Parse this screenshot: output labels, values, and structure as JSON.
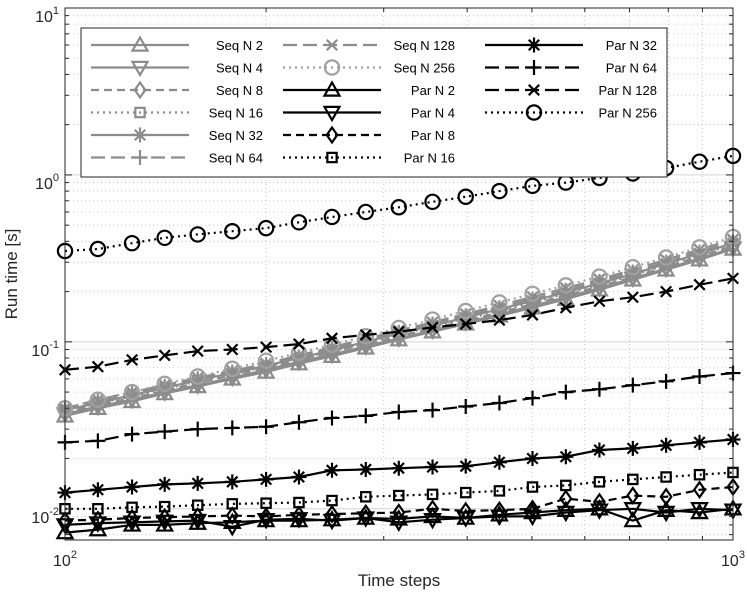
{
  "chart_data": {
    "type": "line",
    "scale": "log-log",
    "title": "",
    "xlabel": "Time steps",
    "ylabel": "Run time [s]",
    "xlim": [
      100,
      1000
    ],
    "ylim": [
      0.0065,
      10
    ],
    "grid": true,
    "legend_position": "top-left",
    "x_ticks": [
      {
        "base": "10",
        "exp": "2",
        "value": 100
      },
      {
        "base": "10",
        "exp": "3",
        "value": 1000
      }
    ],
    "y_ticks": [
      {
        "base": "10",
        "exp": "-2",
        "value": 0.01
      },
      {
        "base": "10",
        "exp": "-1",
        "value": 0.1
      },
      {
        "base": "10",
        "exp": "0",
        "value": 1
      },
      {
        "base": "10",
        "exp": "1",
        "value": 10
      }
    ],
    "x": [
      100,
      112,
      126,
      141,
      158,
      178,
      200,
      224,
      251,
      282,
      316,
      355,
      398,
      447,
      501,
      562,
      631,
      708,
      794,
      891,
      1000
    ],
    "series": [
      {
        "name": "Seq N 2",
        "color": "#8c8c8c",
        "dash": "",
        "marker": "triangle-up",
        "values": [
          0.036,
          0.04,
          0.044,
          0.049,
          0.054,
          0.06,
          0.066,
          0.074,
          0.082,
          0.092,
          0.103,
          0.115,
          0.128,
          0.143,
          0.16,
          0.18,
          0.205,
          0.235,
          0.27,
          0.31,
          0.36
        ]
      },
      {
        "name": "Seq N 4",
        "color": "#8c8c8c",
        "dash": "",
        "marker": "triangle-down",
        "values": [
          0.037,
          0.041,
          0.045,
          0.05,
          0.055,
          0.061,
          0.068,
          0.076,
          0.084,
          0.094,
          0.105,
          0.117,
          0.131,
          0.146,
          0.164,
          0.185,
          0.21,
          0.24,
          0.275,
          0.315,
          0.365
        ]
      },
      {
        "name": "Seq N 8",
        "color": "#8c8c8c",
        "dash": "8,5",
        "marker": "diamond",
        "values": [
          0.038,
          0.042,
          0.046,
          0.051,
          0.057,
          0.063,
          0.07,
          0.078,
          0.087,
          0.097,
          0.108,
          0.12,
          0.134,
          0.15,
          0.168,
          0.19,
          0.215,
          0.245,
          0.282,
          0.325,
          0.375
        ]
      },
      {
        "name": "Seq N 16",
        "color": "#8c8c8c",
        "dash": "2,4",
        "marker": "square",
        "values": [
          0.038,
          0.043,
          0.047,
          0.052,
          0.058,
          0.064,
          0.071,
          0.079,
          0.088,
          0.098,
          0.11,
          0.123,
          0.137,
          0.153,
          0.172,
          0.194,
          0.22,
          0.25,
          0.288,
          0.332,
          0.382
        ]
      },
      {
        "name": "Seq N 32",
        "color": "#8c8c8c",
        "dash": "",
        "marker": "asterisk",
        "values": [
          0.039,
          0.043,
          0.048,
          0.053,
          0.059,
          0.065,
          0.072,
          0.08,
          0.089,
          0.1,
          0.112,
          0.125,
          0.14,
          0.157,
          0.176,
          0.198,
          0.224,
          0.255,
          0.294,
          0.338,
          0.39
        ]
      },
      {
        "name": "Seq N 64",
        "color": "#8c8c8c",
        "dash": "14,6",
        "marker": "plus",
        "values": [
          0.039,
          0.044,
          0.049,
          0.054,
          0.06,
          0.066,
          0.073,
          0.081,
          0.091,
          0.102,
          0.114,
          0.128,
          0.143,
          0.16,
          0.18,
          0.203,
          0.23,
          0.262,
          0.3,
          0.345,
          0.398
        ]
      },
      {
        "name": "Seq N 128",
        "color": "#8c8c8c",
        "dash": "14,6",
        "marker": "x",
        "values": [
          0.04,
          0.045,
          0.05,
          0.055,
          0.061,
          0.067,
          0.074,
          0.083,
          0.093,
          0.104,
          0.117,
          0.131,
          0.147,
          0.165,
          0.186,
          0.21,
          0.237,
          0.27,
          0.31,
          0.357,
          0.41
        ]
      },
      {
        "name": "Seq N 256",
        "color": "#a0a0a0",
        "dash": "2,4",
        "marker": "circle",
        "values": [
          0.04,
          0.045,
          0.05,
          0.056,
          0.062,
          0.069,
          0.077,
          0.086,
          0.096,
          0.108,
          0.121,
          0.136,
          0.153,
          0.172,
          0.194,
          0.218,
          0.246,
          0.28,
          0.32,
          0.368,
          0.425
        ]
      },
      {
        "name": "Par N 2",
        "color": "#000000",
        "dash": "",
        "marker": "triangle-up",
        "values": [
          0.0072,
          0.0075,
          0.008,
          0.008,
          0.0082,
          0.0083,
          0.0085,
          0.0085,
          0.0086,
          0.0088,
          0.0087,
          0.009,
          0.0088,
          0.0092,
          0.0095,
          0.0098,
          0.01,
          0.0085,
          0.0098,
          0.0095,
          0.01
        ]
      },
      {
        "name": "Par N 4",
        "color": "#000000",
        "dash": "",
        "marker": "triangle-down",
        "values": [
          0.008,
          0.0082,
          0.0083,
          0.0084,
          0.0085,
          0.0078,
          0.0086,
          0.0087,
          0.0085,
          0.0088,
          0.0083,
          0.0086,
          0.0088,
          0.009,
          0.009,
          0.0095,
          0.0098,
          0.01,
          0.0095,
          0.01,
          0.0098
        ]
      },
      {
        "name": "Par N 8",
        "color": "#000000",
        "dash": "8,5",
        "marker": "diamond",
        "values": [
          0.0085,
          0.0086,
          0.0088,
          0.0089,
          0.009,
          0.0091,
          0.009,
          0.0092,
          0.0093,
          0.0094,
          0.0095,
          0.01,
          0.0097,
          0.0098,
          0.01,
          0.0115,
          0.011,
          0.012,
          0.0118,
          0.013,
          0.0135
        ]
      },
      {
        "name": "Par N 16",
        "color": "#000000",
        "dash": "2,4",
        "marker": "square",
        "values": [
          0.01,
          0.01,
          0.0102,
          0.0103,
          0.0105,
          0.0107,
          0.0108,
          0.0109,
          0.0112,
          0.0118,
          0.012,
          0.0122,
          0.0125,
          0.0128,
          0.0135,
          0.0138,
          0.0145,
          0.015,
          0.0155,
          0.016,
          0.0165
        ]
      },
      {
        "name": "Par N 32",
        "color": "#000000",
        "dash": "",
        "marker": "asterisk",
        "values": [
          0.0125,
          0.013,
          0.0135,
          0.014,
          0.0142,
          0.0145,
          0.015,
          0.0155,
          0.017,
          0.0172,
          0.0175,
          0.0178,
          0.018,
          0.019,
          0.02,
          0.0205,
          0.0225,
          0.023,
          0.024,
          0.025,
          0.026
        ]
      },
      {
        "name": "Par N 64",
        "color": "#000000",
        "dash": "14,6",
        "marker": "plus",
        "values": [
          0.025,
          0.0255,
          0.028,
          0.029,
          0.03,
          0.0305,
          0.031,
          0.033,
          0.035,
          0.036,
          0.038,
          0.039,
          0.041,
          0.043,
          0.046,
          0.05,
          0.052,
          0.055,
          0.058,
          0.062,
          0.065
        ]
      },
      {
        "name": "Par N 128",
        "color": "#000000",
        "dash": "14,6",
        "marker": "x",
        "values": [
          0.068,
          0.071,
          0.078,
          0.083,
          0.088,
          0.09,
          0.093,
          0.097,
          0.105,
          0.11,
          0.115,
          0.122,
          0.128,
          0.135,
          0.145,
          0.16,
          0.175,
          0.185,
          0.2,
          0.22,
          0.24
        ]
      },
      {
        "name": "Par N 256",
        "color": "#000000",
        "dash": "2,4",
        "marker": "circle",
        "values": [
          0.35,
          0.36,
          0.39,
          0.42,
          0.44,
          0.46,
          0.48,
          0.52,
          0.56,
          0.6,
          0.64,
          0.69,
          0.74,
          0.8,
          0.86,
          0.9,
          0.96,
          1.02,
          1.1,
          1.2,
          1.3
        ]
      }
    ]
  }
}
